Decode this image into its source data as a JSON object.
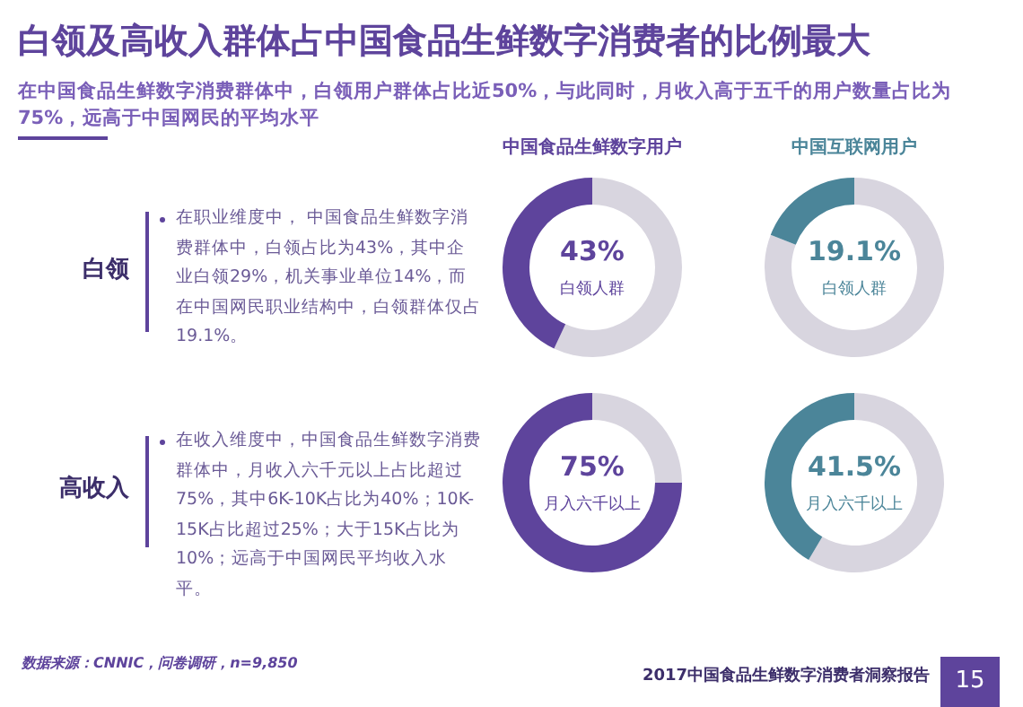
{
  "chart_data": [
    {
      "type": "other",
      "title": "白领及高收入群体占中国食品生鲜数字消费者的比例最大",
      "subtitle": "在中国食品生鲜数字消费群体中，白领用户群体占比近50%，与此同时，月收入高于五千的用户数量占比为75%，远高于中国网民的平均水平",
      "annotations": [
        "白领",
        "在职业维度中， 中国食品生鲜数字消费群体中，白领占比为43%，其中企业白领29%，机关事业单位14%，而在中国网民职业结构中，白领群体仅占19.1%。",
        "高收入",
        "在收入维度中，中国食品生鲜数字消费群体中，月收入六千元以上占比超过75%，其中6K-10K占比为40%；10K-15K占比超过25%；大于15K占比为10%；远高于中国网民平均收入水平。",
        "数据来源：CNNIC，问卷调研，n=9,850",
        "2017中国食品生鲜数字消费者洞察报告",
        "15"
      ]
    },
    {
      "type": "donut",
      "title": "中国食品生鲜数字用户",
      "categories": [
        "白领人群",
        null
      ],
      "values": [
        43,
        57
      ],
      "colors": [
        "#5e449c",
        "#d8d5df"
      ],
      "value_labels": [
        "43%",
        null
      ]
    },
    {
      "type": "donut",
      "title": "中国互联网用户",
      "categories": [
        "白领人群",
        null
      ],
      "values": [
        19.1,
        80.9
      ],
      "colors": [
        "#4b8599",
        "#d8d5df"
      ],
      "value_labels": [
        "19.1%",
        null
      ]
    },
    {
      "type": "donut",
      "categories": [
        "月入六千以上",
        null
      ],
      "values": [
        75,
        25
      ],
      "colors": [
        "#5e449c",
        "#d8d5df"
      ],
      "value_labels": [
        "75%",
        null
      ]
    },
    {
      "type": "donut",
      "categories": [
        "月入六千以上",
        null
      ],
      "values": [
        41.5,
        58.5
      ],
      "colors": [
        "#4b8599",
        "#d8d5df"
      ],
      "value_labels": [
        "41.5%",
        null
      ]
    }
  ]
}
